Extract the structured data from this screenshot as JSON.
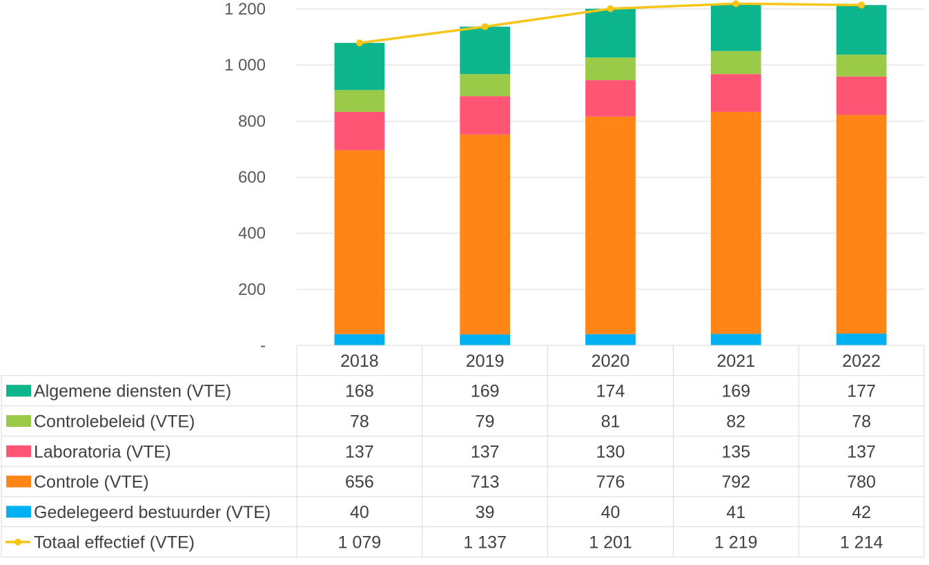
{
  "chart_data": {
    "type": "bar",
    "stacked": true,
    "categories": [
      "2018",
      "2019",
      "2020",
      "2021",
      "2022"
    ],
    "ylim": [
      0,
      1200
    ],
    "yticks": [
      0,
      200,
      400,
      600,
      800,
      1000,
      1200
    ],
    "ytick_labels": [
      "-",
      "200",
      "400",
      "600",
      "800",
      "1 000",
      "1 200"
    ],
    "grid": true,
    "legend_placement": "data-table",
    "series": [
      {
        "name": "Gedelegeerd bestuurder (VTE)",
        "kind": "bar",
        "color": "#00B0F0",
        "values": [
          40,
          39,
          40,
          41,
          42
        ],
        "labels": [
          "40",
          "39",
          "40",
          "41",
          "42"
        ]
      },
      {
        "name": "Controle (VTE)",
        "kind": "bar",
        "color": "#FF8516",
        "values": [
          656,
          713,
          776,
          792,
          780
        ],
        "labels": [
          "656",
          "713",
          "776",
          "792",
          "780"
        ]
      },
      {
        "name": "Laboratoria (VTE)",
        "kind": "bar",
        "color": "#FF5574",
        "values": [
          137,
          137,
          130,
          135,
          137
        ],
        "labels": [
          "137",
          "137",
          "130",
          "135",
          "137"
        ]
      },
      {
        "name": "Controlebeleid (VTE)",
        "kind": "bar",
        "color": "#9ACA48",
        "values": [
          78,
          79,
          81,
          82,
          78
        ],
        "labels": [
          "78",
          "79",
          "81",
          "82",
          "78"
        ]
      },
      {
        "name": "Algemene diensten (VTE)",
        "kind": "bar",
        "color": "#0DB58C",
        "values": [
          168,
          169,
          174,
          169,
          177
        ],
        "labels": [
          "168",
          "169",
          "174",
          "169",
          "177"
        ]
      },
      {
        "name": "Totaal effectief (VTE)",
        "kind": "line",
        "color": "#F5C518",
        "values": [
          1079,
          1137,
          1201,
          1219,
          1214
        ],
        "labels": [
          "1 079",
          "1 137",
          "1 201",
          "1 219",
          "1 214"
        ]
      }
    ],
    "table_order": [
      "Algemene diensten (VTE)",
      "Controlebeleid (VTE)",
      "Laboratoria (VTE)",
      "Controle (VTE)",
      "Gedelegeerd bestuurder (VTE)",
      "Totaal effectief (VTE)"
    ]
  }
}
